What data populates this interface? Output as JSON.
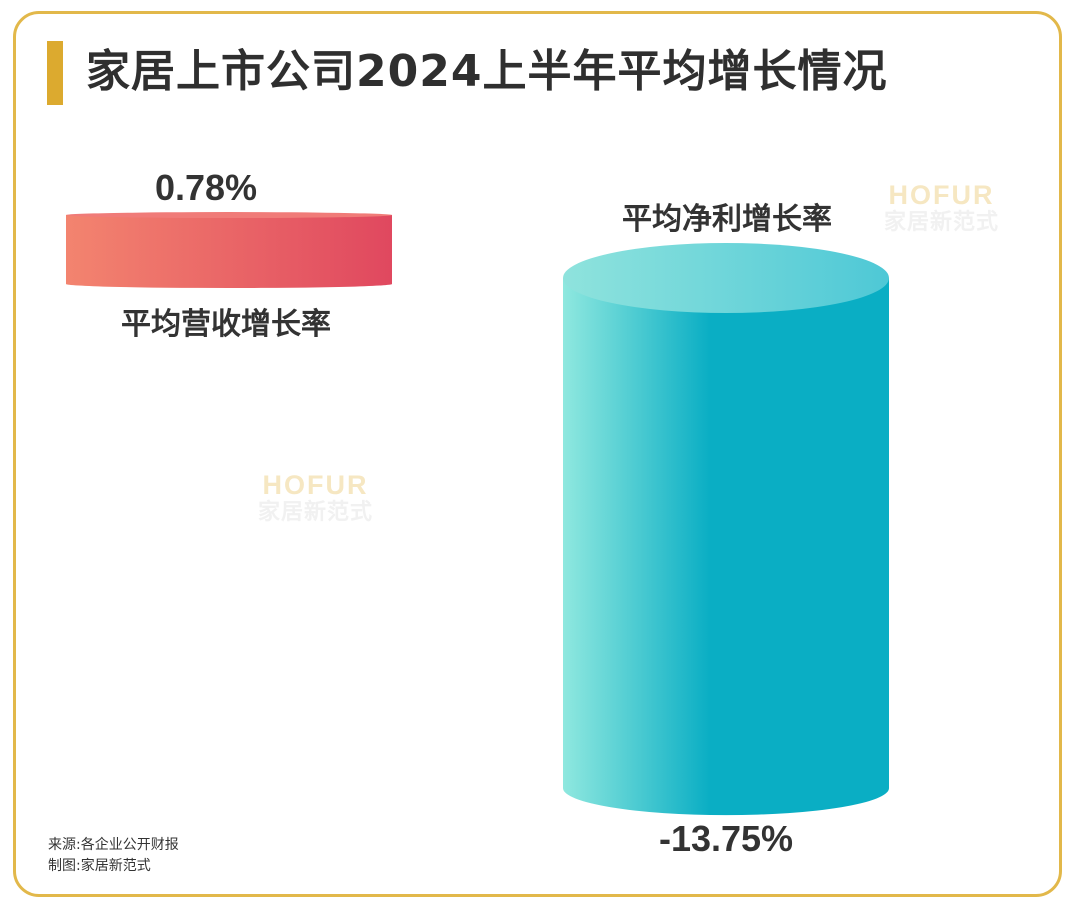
{
  "title": "家居上市公司2024上半年平均增长情况",
  "chart_data": {
    "type": "bar",
    "categories": [
      "平均营收增长率",
      "平均净利增长率"
    ],
    "values": [
      0.78,
      -13.75
    ],
    "value_labels": [
      "0.78%",
      "-13.75%"
    ],
    "title": "家居上市公司2024上半年平均增长情况",
    "colors": {
      "revenue": [
        "#f3846f",
        "#e0485f"
      ],
      "profit": [
        "#8fe8df",
        "#0aaec4"
      ]
    }
  },
  "watermark": {
    "en": "HOFUR",
    "cn": "家居新范式"
  },
  "footer": {
    "source": "来源:各企业公开财报",
    "made_by": "制图:家居新范式"
  },
  "colors": {
    "accent": "#dcaa2f",
    "border": "#e2b84a"
  }
}
